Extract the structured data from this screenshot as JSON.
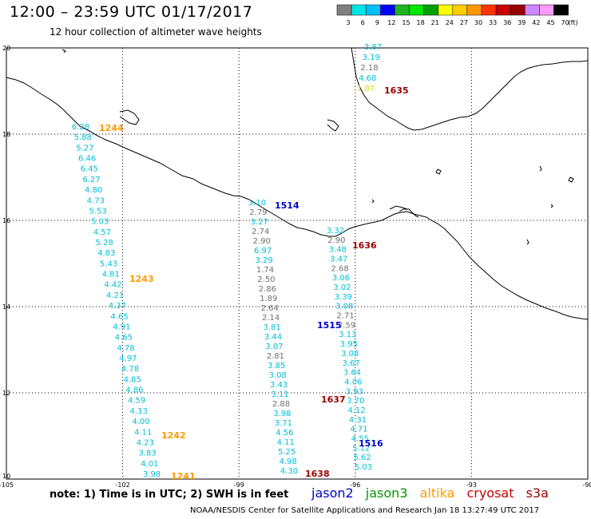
{
  "header": {
    "title": "12:00 – 23:59 UTC 01/17/2017",
    "subtitle": "12 hour collection of altimeter wave heights"
  },
  "colorbar": {
    "unit": "(ft)",
    "labels": [
      "3",
      "6",
      "9",
      "12",
      "15",
      "18",
      "21",
      "24",
      "27",
      "30",
      "33",
      "36",
      "39",
      "42",
      "45",
      "70"
    ],
    "colors": [
      "#808080",
      "#00e5e5",
      "#00bfff",
      "#0000ff",
      "#1fb41f",
      "#00e600",
      "#00a000",
      "#ffff00",
      "#ffcc00",
      "#ff9900",
      "#ff3300",
      "#cc0000",
      "#990000",
      "#cc88ff",
      "#ff99ff",
      "#000000"
    ]
  },
  "axes": {
    "lon_labels": [
      "-105",
      "-102",
      "-99",
      "-96",
      "-93",
      "-90"
    ],
    "lat_labels": [
      "20",
      "18",
      "16",
      "14",
      "12",
      "10"
    ]
  },
  "satellite_colors": {
    "jason2": "#0000cc",
    "jason3": "#009900",
    "altika": "#ff9900",
    "cryosat": "#cc0000",
    "s3a": "#990000"
  },
  "pass_labels": [
    {
      "text": "1244",
      "sat": "altika"
    },
    {
      "text": "1243",
      "sat": "altika"
    },
    {
      "text": "1242",
      "sat": "altika"
    },
    {
      "text": "1241",
      "sat": "altika"
    },
    {
      "text": "1514",
      "sat": "jason2"
    },
    {
      "text": "1515",
      "sat": "jason2"
    },
    {
      "text": "1516",
      "sat": "jason2"
    },
    {
      "text": "1635",
      "sat": "s3a"
    },
    {
      "text": "1636",
      "sat": "s3a"
    },
    {
      "text": "1637",
      "sat": "s3a"
    },
    {
      "text": "1638",
      "sat": "s3a"
    }
  ],
  "tracks": [
    {
      "name": "altika-1244-1241",
      "values": [
        {
          "v": "6.28",
          "c": "#00bfd8"
        },
        {
          "v": "5.88",
          "c": "#00bfd8"
        },
        {
          "v": "5.27",
          "c": "#00bfd8"
        },
        {
          "v": "6.46",
          "c": "#00bfd8"
        },
        {
          "v": "6.45",
          "c": "#00bfd8"
        },
        {
          "v": "6.27",
          "c": "#00bfd8"
        },
        {
          "v": "4.80",
          "c": "#00bfd8"
        },
        {
          "v": "4.73",
          "c": "#00bfd8"
        },
        {
          "v": "5.53",
          "c": "#00bfd8"
        },
        {
          "v": "5.03",
          "c": "#00bfd8"
        },
        {
          "v": "4.57",
          "c": "#00bfd8"
        },
        {
          "v": "5.28",
          "c": "#00bfd8"
        },
        {
          "v": "4.83",
          "c": "#00bfd8"
        },
        {
          "v": "5.43",
          "c": "#00bfd8"
        },
        {
          "v": "4.81",
          "c": "#00bfd8"
        },
        {
          "v": "4.42",
          "c": "#00bfd8"
        },
        {
          "v": "4.21",
          "c": "#00bfd8"
        },
        {
          "v": "4.37",
          "c": "#00bfd8"
        },
        {
          "v": "4.65",
          "c": "#00bfd8"
        },
        {
          "v": "4.91",
          "c": "#00bfd8"
        },
        {
          "v": "4.65",
          "c": "#00bfd8"
        },
        {
          "v": "4.78",
          "c": "#00bfd8"
        },
        {
          "v": "4.97",
          "c": "#00bfd8"
        },
        {
          "v": "4.78",
          "c": "#00bfd8"
        },
        {
          "v": "4.85",
          "c": "#00bfd8"
        },
        {
          "v": "4.86",
          "c": "#00bfd8"
        },
        {
          "v": "4.59",
          "c": "#00bfd8"
        },
        {
          "v": "4.13",
          "c": "#00bfd8"
        },
        {
          "v": "4.00",
          "c": "#00bfd8"
        },
        {
          "v": "4.11",
          "c": "#00bfd8"
        },
        {
          "v": "4.23",
          "c": "#00bfd8"
        },
        {
          "v": "3.83",
          "c": "#00bfd8"
        },
        {
          "v": "4.01",
          "c": "#00bfd8"
        },
        {
          "v": "3.98",
          "c": "#00bfd8"
        }
      ]
    },
    {
      "name": "jason2-1514-1515",
      "values": [
        {
          "v": "3.10",
          "c": "#00bfd8"
        },
        {
          "v": "2.79",
          "c": "#707070"
        },
        {
          "v": "3.27",
          "c": "#00bfd8"
        },
        {
          "v": "2.74",
          "c": "#707070"
        },
        {
          "v": "2.90",
          "c": "#707070"
        },
        {
          "v": "6.97",
          "c": "#00bfd8"
        },
        {
          "v": "3.29",
          "c": "#00bfd8"
        },
        {
          "v": "1.74",
          "c": "#707070"
        },
        {
          "v": "2.50",
          "c": "#707070"
        },
        {
          "v": "2.86",
          "c": "#707070"
        },
        {
          "v": "1.89",
          "c": "#707070"
        },
        {
          "v": "2.64",
          "c": "#707070"
        },
        {
          "v": "2.14",
          "c": "#707070"
        },
        {
          "v": "3.81",
          "c": "#00bfd8"
        },
        {
          "v": "3.44",
          "c": "#00bfd8"
        },
        {
          "v": "3.07",
          "c": "#00bfd8"
        },
        {
          "v": "2.81",
          "c": "#707070"
        },
        {
          "v": "3.85",
          "c": "#00bfd8"
        },
        {
          "v": "3.08",
          "c": "#00bfd8"
        },
        {
          "v": "3.43",
          "c": "#00bfd8"
        },
        {
          "v": "3.11",
          "c": "#00bfd8"
        },
        {
          "v": "2.88",
          "c": "#707070"
        },
        {
          "v": "3.98",
          "c": "#00bfd8"
        },
        {
          "v": "3.71",
          "c": "#00bfd8"
        },
        {
          "v": "4.56",
          "c": "#00bfd8"
        },
        {
          "v": "4.11",
          "c": "#00bfd8"
        },
        {
          "v": "5.25",
          "c": "#00bfd8"
        },
        {
          "v": "4.98",
          "c": "#00bfd8"
        },
        {
          "v": "4.30",
          "c": "#00bfd8"
        }
      ]
    },
    {
      "name": "s3a-1636-1516",
      "values": [
        {
          "v": "3.32",
          "c": "#00bfd8"
        },
        {
          "v": "2.90",
          "c": "#707070"
        },
        {
          "v": "3.48",
          "c": "#00bfd8"
        },
        {
          "v": "3.47",
          "c": "#00bfd8"
        },
        {
          "v": "2.68",
          "c": "#707070"
        },
        {
          "v": "3.06",
          "c": "#00bfd8"
        },
        {
          "v": "3.02",
          "c": "#00bfd8"
        },
        {
          "v": "3.39",
          "c": "#00bfd8"
        },
        {
          "v": "3.08",
          "c": "#00bfd8"
        },
        {
          "v": "2.71",
          "c": "#707070"
        },
        {
          "v": "2.59",
          "c": "#707070"
        },
        {
          "v": "3.13",
          "c": "#00bfd8"
        },
        {
          "v": "3.95",
          "c": "#00bfd8"
        },
        {
          "v": "3.08",
          "c": "#00bfd8"
        },
        {
          "v": "3.67",
          "c": "#00bfd8"
        },
        {
          "v": "3.64",
          "c": "#00bfd8"
        },
        {
          "v": "4.06",
          "c": "#00bfd8"
        },
        {
          "v": "3.93",
          "c": "#00bfd8"
        },
        {
          "v": "3.70",
          "c": "#00bfd8"
        },
        {
          "v": "4.12",
          "c": "#00bfd8"
        },
        {
          "v": "4.31",
          "c": "#00bfd8"
        },
        {
          "v": "4.71",
          "c": "#00bfd8"
        },
        {
          "v": "4.55",
          "c": "#00bfd8"
        },
        {
          "v": "5.12",
          "c": "#00bfd8"
        },
        {
          "v": "5.62",
          "c": "#00bfd8"
        },
        {
          "v": "5.03",
          "c": "#00bfd8"
        }
      ]
    },
    {
      "name": "s3a-1635-north",
      "values": [
        {
          "v": "3.87",
          "c": "#00bfd8"
        },
        {
          "v": "3.19",
          "c": "#00bfd8"
        },
        {
          "v": "2.18",
          "c": "#707070"
        },
        {
          "v": "4.68",
          "c": "#00bfd8"
        },
        {
          "v": "1.87",
          "c": "#e8d800"
        }
      ]
    }
  ],
  "footer": {
    "note": "note:  1) Time is in UTC;  2) SWH is in feet",
    "legend": [
      {
        "label": "jason2",
        "color": "#0000cc"
      },
      {
        "label": "jason3",
        "color": "#009900"
      },
      {
        "label": "altika",
        "color": "#ff9900"
      },
      {
        "label": "cryosat",
        "color": "#cc0000"
      },
      {
        "label": "s3a",
        "color": "#990000"
      }
    ],
    "credit": "NOAA/NESDIS Center for Satellite Applications and Research     Jan 18 13:27:49 UTC 2017"
  }
}
